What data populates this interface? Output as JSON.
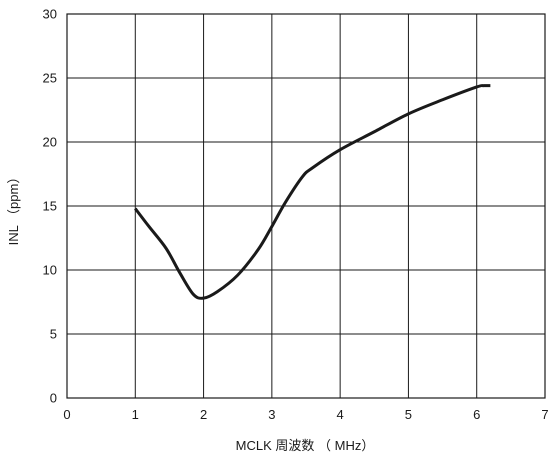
{
  "chart_data": {
    "type": "line",
    "xlabel": "MCLK 周波数 （ MHz）",
    "ylabel": "INL （ppm）",
    "xlim": [
      0,
      7
    ],
    "ylim": [
      0,
      30
    ],
    "x_ticks": [
      0,
      1,
      2,
      3,
      4,
      5,
      6,
      7
    ],
    "y_ticks": [
      0,
      5,
      10,
      15,
      20,
      25,
      30
    ],
    "grid": true,
    "series": [
      {
        "color": "#1a1a1a",
        "points": [
          {
            "x": 1.0,
            "y": 14.8
          },
          {
            "x": 1.2,
            "y": 13.4
          },
          {
            "x": 1.45,
            "y": 11.7
          },
          {
            "x": 1.65,
            "y": 9.8
          },
          {
            "x": 1.85,
            "y": 8.1
          },
          {
            "x": 2.0,
            "y": 7.8
          },
          {
            "x": 2.2,
            "y": 8.3
          },
          {
            "x": 2.5,
            "y": 9.6
          },
          {
            "x": 2.8,
            "y": 11.6
          },
          {
            "x": 3.0,
            "y": 13.4
          },
          {
            "x": 3.2,
            "y": 15.3
          },
          {
            "x": 3.45,
            "y": 17.3
          },
          {
            "x": 3.6,
            "y": 18.0
          },
          {
            "x": 4.0,
            "y": 19.4
          },
          {
            "x": 4.5,
            "y": 20.8
          },
          {
            "x": 5.0,
            "y": 22.2
          },
          {
            "x": 5.5,
            "y": 23.3
          },
          {
            "x": 6.0,
            "y": 24.3
          },
          {
            "x": 6.1,
            "y": 24.4
          },
          {
            "x": 6.2,
            "y": 24.4
          }
        ]
      }
    ]
  }
}
